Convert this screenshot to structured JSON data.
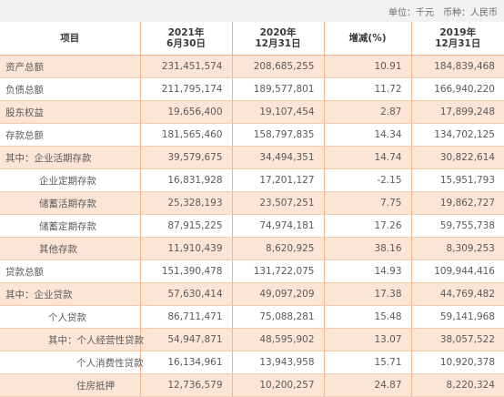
{
  "unit_bar": {
    "unit": "单位：千元",
    "currency": "币种：人民币"
  },
  "headers": {
    "item": "项目",
    "col2021_line1": "2021年",
    "col2021_line2": "6月30日",
    "col2020_line1": "2020年",
    "col2020_line2": "12月31日",
    "change": "增减(%)",
    "col2019_line1": "2019年",
    "col2019_line2": "12月31日"
  },
  "rows": [
    {
      "label": "资产总额",
      "v2021": "231,451,574",
      "v2020": "208,685,255",
      "change": "10.91",
      "v2019": "184,839,468"
    },
    {
      "label": "负债总额",
      "v2021": "211,795,174",
      "v2020": "189,577,801",
      "change": "11.72",
      "v2019": "166,940,220"
    },
    {
      "label": "股东权益",
      "v2021": "19,656,400",
      "v2020": "19,107,454",
      "change": "2.87",
      "v2019": "17,899,248"
    },
    {
      "label": "存款总额",
      "v2021": "181,565,460",
      "v2020": "158,797,835",
      "change": "14.34",
      "v2019": "134,702,125"
    },
    {
      "label": "其中：企业活期存款",
      "v2021": "39,579,675",
      "v2020": "34,494,351",
      "change": "14.74",
      "v2019": "30,822,614"
    },
    {
      "label": "企业定期存款",
      "v2021": "16,831,928",
      "v2020": "17,201,127",
      "change": "-2.15",
      "v2019": "15,951,793"
    },
    {
      "label": "储蓄活期存款",
      "v2021": "25,328,193",
      "v2020": "23,507,251",
      "change": "7.75",
      "v2019": "19,862,727"
    },
    {
      "label": "储蓄定期存款",
      "v2021": "87,915,225",
      "v2020": "74,974,181",
      "change": "17.26",
      "v2019": "59,755,738"
    },
    {
      "label": "其他存款",
      "v2021": "11,910,439",
      "v2020": "8,620,925",
      "change": "38.16",
      "v2019": "8,309,253"
    },
    {
      "label": "贷款总额",
      "v2021": "151,390,478",
      "v2020": "131,722,075",
      "change": "14.93",
      "v2019": "109,944,416"
    },
    {
      "label": "其中：企业贷款",
      "v2021": "57,630,414",
      "v2020": "49,097,209",
      "change": "17.38",
      "v2019": "44,769,482"
    },
    {
      "label": "个人贷款",
      "v2021": "86,711,471",
      "v2020": "75,088,281",
      "change": "15.48",
      "v2019": "59,141,968"
    },
    {
      "label": "其中：个人经营性贷款",
      "v2021": "54,947,871",
      "v2020": "48,595,902",
      "change": "13.07",
      "v2019": "38,057,522"
    },
    {
      "label": "个人消费性贷款",
      "v2021": "16,134,961",
      "v2020": "13,943,958",
      "change": "15.71",
      "v2019": "10,920,378"
    },
    {
      "label": "住房抵押",
      "v2021": "12,736,579",
      "v2020": "10,200,257",
      "change": "24.87",
      "v2019": "8,220,324"
    }
  ],
  "colors": {
    "highlight_row": "#fde5d6",
    "rule": "#f0b48c",
    "unit_bar_bg": "#f2f2f2"
  }
}
